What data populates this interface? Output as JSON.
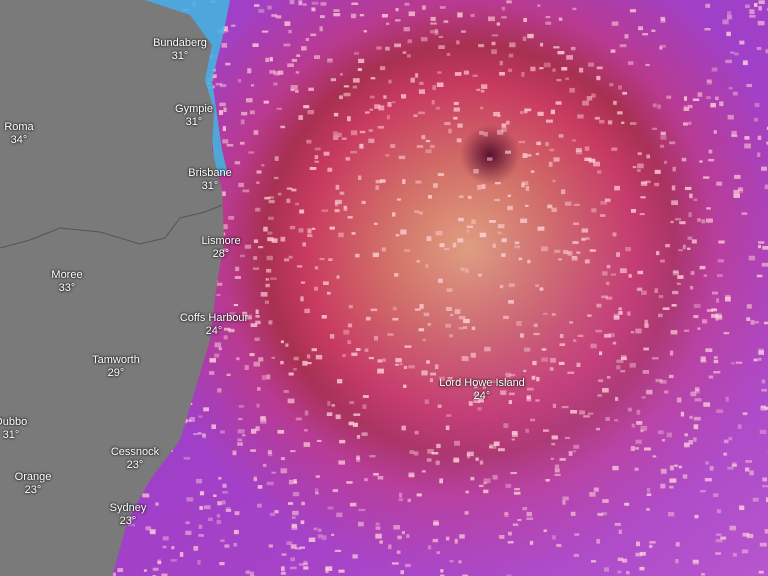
{
  "map": {
    "layer": "temperature",
    "colors": {
      "land": "#7a7a7a",
      "ocean_hot": "#c0305a",
      "ocean_warm": "#d8786a",
      "ocean_cool": "#b040c0",
      "coastal_cool": "#40b8e0",
      "cyclone_eye": "#6a1838"
    },
    "cities": [
      {
        "name": "Bundaberg",
        "temp": "31°"
      },
      {
        "name": "Gympie",
        "temp": "31°"
      },
      {
        "name": "Roma",
        "temp": "34°"
      },
      {
        "name": "Brisbane",
        "temp": "31°"
      },
      {
        "name": "Lismore",
        "temp": "28°"
      },
      {
        "name": "Moree",
        "temp": "33°"
      },
      {
        "name": "Coffs Harbour",
        "temp": "24°"
      },
      {
        "name": "Tamworth",
        "temp": "29°"
      },
      {
        "name": "Dubbo",
        "temp": "31°"
      },
      {
        "name": "Cessnock",
        "temp": "23°"
      },
      {
        "name": "Orange",
        "temp": "23°"
      },
      {
        "name": "Sydney",
        "temp": "23°"
      },
      {
        "name": "Lord Howe Island",
        "temp": "24°"
      }
    ]
  }
}
